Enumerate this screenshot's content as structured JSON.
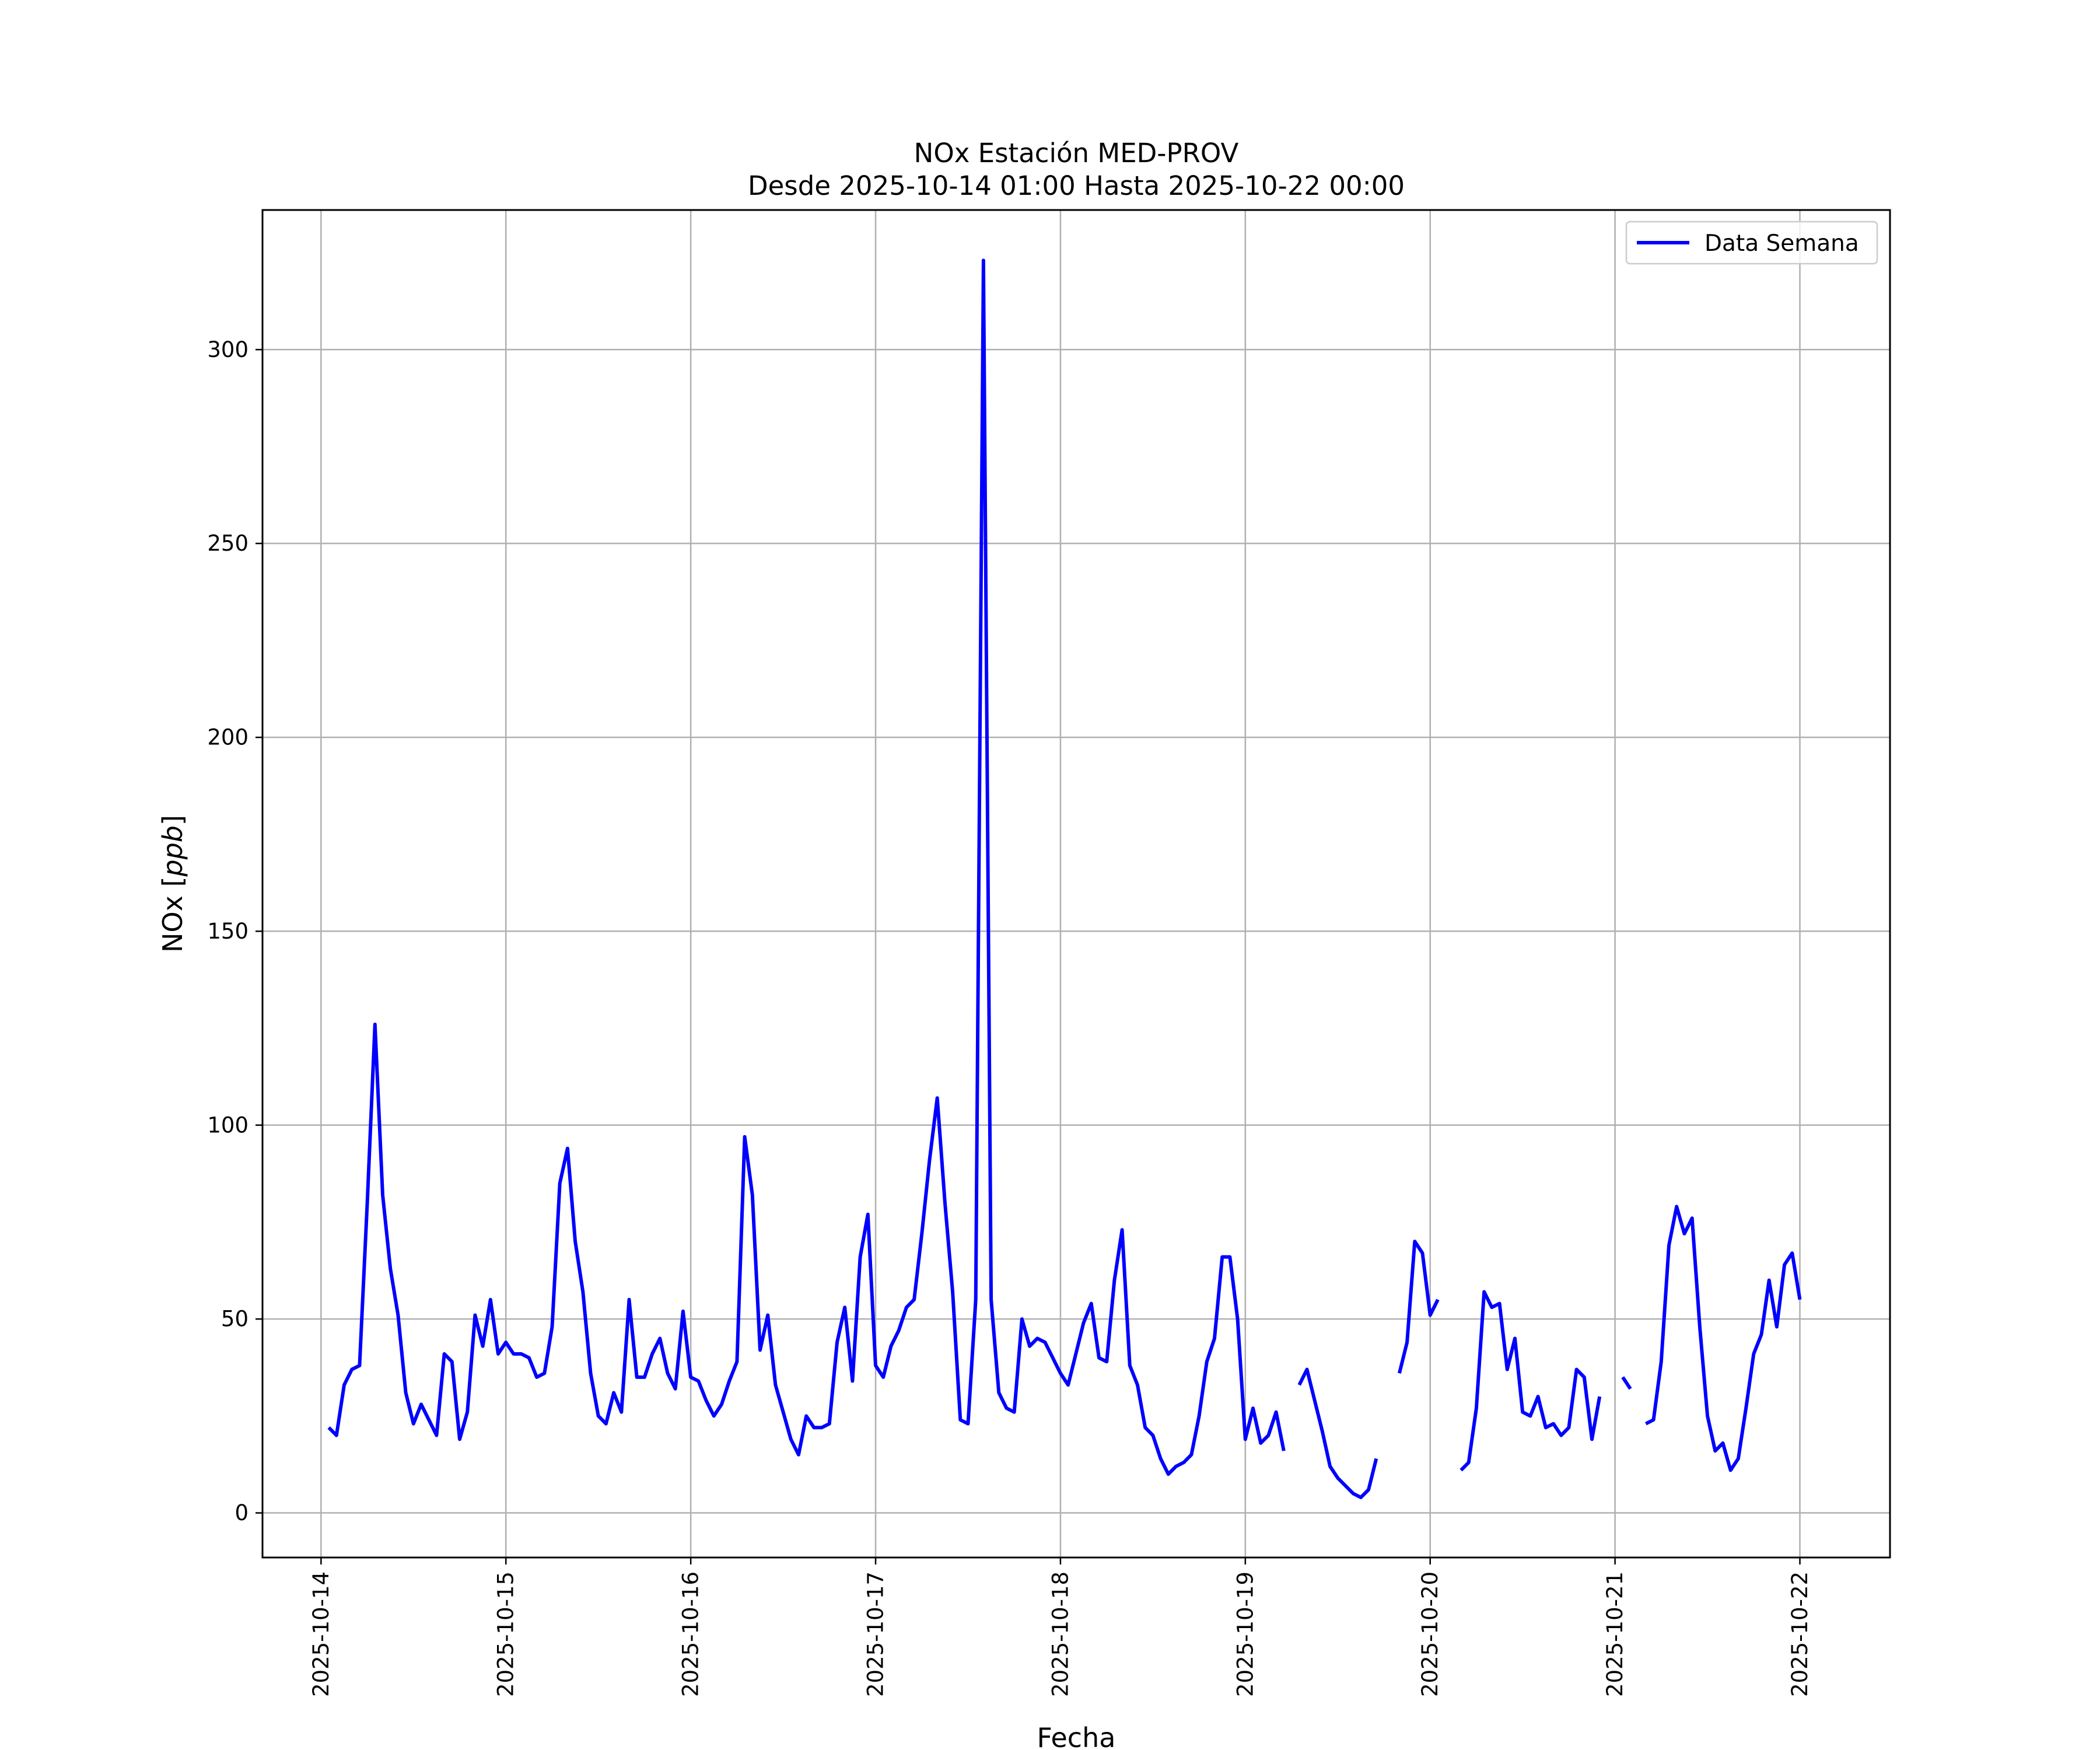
{
  "chart_data": {
    "type": "line",
    "title": "NOx Estación MED-PROV",
    "subtitle": "Desde 2025-10-14 01:00 Hasta 2025-10-22 00:00",
    "xlabel": "Fecha",
    "ylabel": "NOx [ppb]",
    "ylabel_parts": {
      "main": "NOx [",
      "unit": "ppb",
      "close": "]"
    },
    "xlim": [
      "2025-10-13T16:24",
      "2025-10-22T11:42"
    ],
    "ylim": [
      -11.5,
      336
    ],
    "grid": true,
    "legend_position": "top-right",
    "x_ticks": [
      "2025-10-14",
      "2025-10-15",
      "2025-10-16",
      "2025-10-17",
      "2025-10-18",
      "2025-10-19",
      "2025-10-20",
      "2025-10-21",
      "2025-10-22"
    ],
    "y_ticks": [
      0,
      50,
      100,
      150,
      200,
      250,
      300
    ],
    "series": [
      {
        "name": "Data Semana",
        "color": "#0000ff",
        "points": [
          [
            "2025-10-14T01:00",
            22
          ],
          [
            "2025-10-14T02:00",
            20
          ],
          [
            "2025-10-14T03:00",
            33
          ],
          [
            "2025-10-14T04:00",
            37
          ],
          [
            "2025-10-14T05:00",
            38
          ],
          [
            "2025-10-14T06:00",
            80
          ],
          [
            "2025-10-14T07:00",
            126
          ],
          [
            "2025-10-14T08:00",
            82
          ],
          [
            "2025-10-14T09:00",
            63
          ],
          [
            "2025-10-14T10:00",
            51
          ],
          [
            "2025-10-14T11:00",
            31
          ],
          [
            "2025-10-14T12:00",
            23
          ],
          [
            "2025-10-14T13:00",
            28
          ],
          [
            "2025-10-14T14:00",
            24
          ],
          [
            "2025-10-14T15:00",
            20
          ],
          [
            "2025-10-14T16:00",
            41
          ],
          [
            "2025-10-14T17:00",
            39
          ],
          [
            "2025-10-14T18:00",
            19
          ],
          [
            "2025-10-14T19:00",
            26
          ],
          [
            "2025-10-14T20:00",
            51
          ],
          [
            "2025-10-14T21:00",
            43
          ],
          [
            "2025-10-14T22:00",
            55
          ],
          [
            "2025-10-14T23:00",
            41
          ],
          [
            "2025-10-15T00:00",
            44
          ],
          [
            "2025-10-15T01:00",
            41
          ],
          [
            "2025-10-15T02:00",
            41
          ],
          [
            "2025-10-15T03:00",
            40
          ],
          [
            "2025-10-15T04:00",
            35
          ],
          [
            "2025-10-15T05:00",
            36
          ],
          [
            "2025-10-15T06:00",
            48
          ],
          [
            "2025-10-15T07:00",
            85
          ],
          [
            "2025-10-15T08:00",
            94
          ],
          [
            "2025-10-15T09:00",
            70
          ],
          [
            "2025-10-15T10:00",
            57
          ],
          [
            "2025-10-15T11:00",
            36
          ],
          [
            "2025-10-15T12:00",
            25
          ],
          [
            "2025-10-15T13:00",
            23
          ],
          [
            "2025-10-15T14:00",
            31
          ],
          [
            "2025-10-15T15:00",
            26
          ],
          [
            "2025-10-15T16:00",
            55
          ],
          [
            "2025-10-15T17:00",
            35
          ],
          [
            "2025-10-15T18:00",
            35
          ],
          [
            "2025-10-15T19:00",
            41
          ],
          [
            "2025-10-15T20:00",
            45
          ],
          [
            "2025-10-15T21:00",
            36
          ],
          [
            "2025-10-15T22:00",
            32
          ],
          [
            "2025-10-15T23:00",
            52
          ],
          [
            "2025-10-16T00:00",
            35
          ],
          [
            "2025-10-16T01:00",
            34
          ],
          [
            "2025-10-16T02:00",
            29
          ],
          [
            "2025-10-16T03:00",
            25
          ],
          [
            "2025-10-16T04:00",
            28
          ],
          [
            "2025-10-16T05:00",
            34
          ],
          [
            "2025-10-16T06:00",
            39
          ],
          [
            "2025-10-16T07:00",
            97
          ],
          [
            "2025-10-16T08:00",
            82
          ],
          [
            "2025-10-16T09:00",
            42
          ],
          [
            "2025-10-16T10:00",
            51
          ],
          [
            "2025-10-16T11:00",
            33
          ],
          [
            "2025-10-16T12:00",
            26
          ],
          [
            "2025-10-16T13:00",
            19
          ],
          [
            "2025-10-16T14:00",
            15
          ],
          [
            "2025-10-16T15:00",
            25
          ],
          [
            "2025-10-16T16:00",
            22
          ],
          [
            "2025-10-16T17:00",
            22
          ],
          [
            "2025-10-16T18:00",
            23
          ],
          [
            "2025-10-16T19:00",
            44
          ],
          [
            "2025-10-16T20:00",
            53
          ],
          [
            "2025-10-16T21:00",
            34
          ],
          [
            "2025-10-16T22:00",
            66
          ],
          [
            "2025-10-16T23:00",
            77
          ],
          [
            "2025-10-17T00:00",
            38
          ],
          [
            "2025-10-17T01:00",
            35
          ],
          [
            "2025-10-17T02:00",
            43
          ],
          [
            "2025-10-17T03:00",
            47
          ],
          [
            "2025-10-17T04:00",
            53
          ],
          [
            "2025-10-17T05:00",
            55
          ],
          [
            "2025-10-17T06:00",
            72
          ],
          [
            "2025-10-17T07:00",
            91
          ],
          [
            "2025-10-17T08:00",
            107
          ],
          [
            "2025-10-17T09:00",
            80
          ],
          [
            "2025-10-17T10:00",
            57
          ],
          [
            "2025-10-17T11:00",
            24
          ],
          [
            "2025-10-17T12:00",
            23
          ],
          [
            "2025-10-17T13:00",
            55
          ],
          [
            "2025-10-17T14:00",
            323
          ],
          [
            "2025-10-17T15:00",
            55
          ],
          [
            "2025-10-17T16:00",
            31
          ],
          [
            "2025-10-17T17:00",
            27
          ],
          [
            "2025-10-17T18:00",
            26
          ],
          [
            "2025-10-17T19:00",
            50
          ],
          [
            "2025-10-17T20:00",
            43
          ],
          [
            "2025-10-17T21:00",
            45
          ],
          [
            "2025-10-17T22:00",
            44
          ],
          [
            "2025-10-17T23:00",
            40
          ],
          [
            "2025-10-18T00:00",
            36
          ],
          [
            "2025-10-18T01:00",
            33
          ],
          [
            "2025-10-18T02:00",
            41
          ],
          [
            "2025-10-18T03:00",
            49
          ],
          [
            "2025-10-18T04:00",
            54
          ],
          [
            "2025-10-18T05:00",
            40
          ],
          [
            "2025-10-18T06:00",
            39
          ],
          [
            "2025-10-18T07:00",
            60
          ],
          [
            "2025-10-18T08:00",
            73
          ],
          [
            "2025-10-18T09:00",
            38
          ],
          [
            "2025-10-18T10:00",
            33
          ],
          [
            "2025-10-18T11:00",
            22
          ],
          [
            "2025-10-18T12:00",
            20
          ],
          [
            "2025-10-18T13:00",
            14
          ],
          [
            "2025-10-18T14:00",
            10
          ],
          [
            "2025-10-18T15:00",
            12
          ],
          [
            "2025-10-18T16:00",
            13
          ],
          [
            "2025-10-18T17:00",
            15
          ],
          [
            "2025-10-18T18:00",
            25
          ],
          [
            "2025-10-18T19:00",
            39
          ],
          [
            "2025-10-18T20:00",
            45
          ],
          [
            "2025-10-18T21:00",
            66
          ],
          [
            "2025-10-18T22:00",
            66
          ],
          [
            "2025-10-18T23:00",
            50
          ],
          [
            "2025-10-19T00:00",
            19
          ],
          [
            "2025-10-19T01:00",
            27
          ],
          [
            "2025-10-19T02:00",
            18
          ],
          [
            "2025-10-19T03:00",
            20
          ],
          [
            "2025-10-19T04:00",
            26
          ],
          [
            "2025-10-19T05:00",
            16
          ],
          [
            "2025-10-19T06:00",
            null
          ],
          [
            "2025-10-19T07:00",
            33
          ],
          [
            "2025-10-19T08:00",
            37
          ],
          [
            "2025-10-19T09:00",
            29
          ],
          [
            "2025-10-19T10:00",
            21
          ],
          [
            "2025-10-19T11:00",
            12
          ],
          [
            "2025-10-19T12:00",
            9
          ],
          [
            "2025-10-19T13:00",
            7
          ],
          [
            "2025-10-19T14:00",
            5
          ],
          [
            "2025-10-19T15:00",
            4
          ],
          [
            "2025-10-19T16:00",
            6
          ],
          [
            "2025-10-19T17:00",
            14
          ],
          [
            "2025-10-19T18:00",
            null
          ],
          [
            "2025-10-19T19:00",
            null
          ],
          [
            "2025-10-19T20:00",
            36
          ],
          [
            "2025-10-19T21:00",
            44
          ],
          [
            "2025-10-19T22:00",
            70
          ],
          [
            "2025-10-19T23:00",
            67
          ],
          [
            "2025-10-20T00:00",
            51
          ],
          [
            "2025-10-20T01:00",
            55
          ],
          [
            "2025-10-20T02:00",
            null
          ],
          [
            "2025-10-20T03:00",
            null
          ],
          [
            "2025-10-20T04:00",
            11
          ],
          [
            "2025-10-20T05:00",
            13
          ],
          [
            "2025-10-20T06:00",
            27
          ],
          [
            "2025-10-20T07:00",
            57
          ],
          [
            "2025-10-20T08:00",
            53
          ],
          [
            "2025-10-20T09:00",
            54
          ],
          [
            "2025-10-20T10:00",
            37
          ],
          [
            "2025-10-20T11:00",
            45
          ],
          [
            "2025-10-20T12:00",
            26
          ],
          [
            "2025-10-20T13:00",
            25
          ],
          [
            "2025-10-20T14:00",
            30
          ],
          [
            "2025-10-20T15:00",
            22
          ],
          [
            "2025-10-20T16:00",
            23
          ],
          [
            "2025-10-20T17:00",
            20
          ],
          [
            "2025-10-20T18:00",
            22
          ],
          [
            "2025-10-20T19:00",
            37
          ],
          [
            "2025-10-20T20:00",
            35
          ],
          [
            "2025-10-20T21:00",
            19
          ],
          [
            "2025-10-20T22:00",
            30
          ],
          [
            "2025-10-20T23:00",
            null
          ],
          [
            "2025-10-21T00:00",
            null
          ],
          [
            "2025-10-21T01:00",
            35
          ],
          [
            "2025-10-21T02:00",
            32
          ],
          [
            "2025-10-21T03:00",
            null
          ],
          [
            "2025-10-21T04:00",
            23
          ],
          [
            "2025-10-21T05:00",
            24
          ],
          [
            "2025-10-21T06:00",
            39
          ],
          [
            "2025-10-21T07:00",
            69
          ],
          [
            "2025-10-21T08:00",
            79
          ],
          [
            "2025-10-21T09:00",
            72
          ],
          [
            "2025-10-21T10:00",
            76
          ],
          [
            "2025-10-21T11:00",
            48
          ],
          [
            "2025-10-21T12:00",
            25
          ],
          [
            "2025-10-21T13:00",
            16
          ],
          [
            "2025-10-21T14:00",
            18
          ],
          [
            "2025-10-21T15:00",
            11
          ],
          [
            "2025-10-21T16:00",
            14
          ],
          [
            "2025-10-21T17:00",
            27
          ],
          [
            "2025-10-21T18:00",
            41
          ],
          [
            "2025-10-21T19:00",
            46
          ],
          [
            "2025-10-21T20:00",
            60
          ],
          [
            "2025-10-21T21:00",
            48
          ],
          [
            "2025-10-21T22:00",
            64
          ],
          [
            "2025-10-21T23:00",
            67
          ],
          [
            "2025-10-22T00:00",
            55
          ]
        ]
      }
    ]
  }
}
